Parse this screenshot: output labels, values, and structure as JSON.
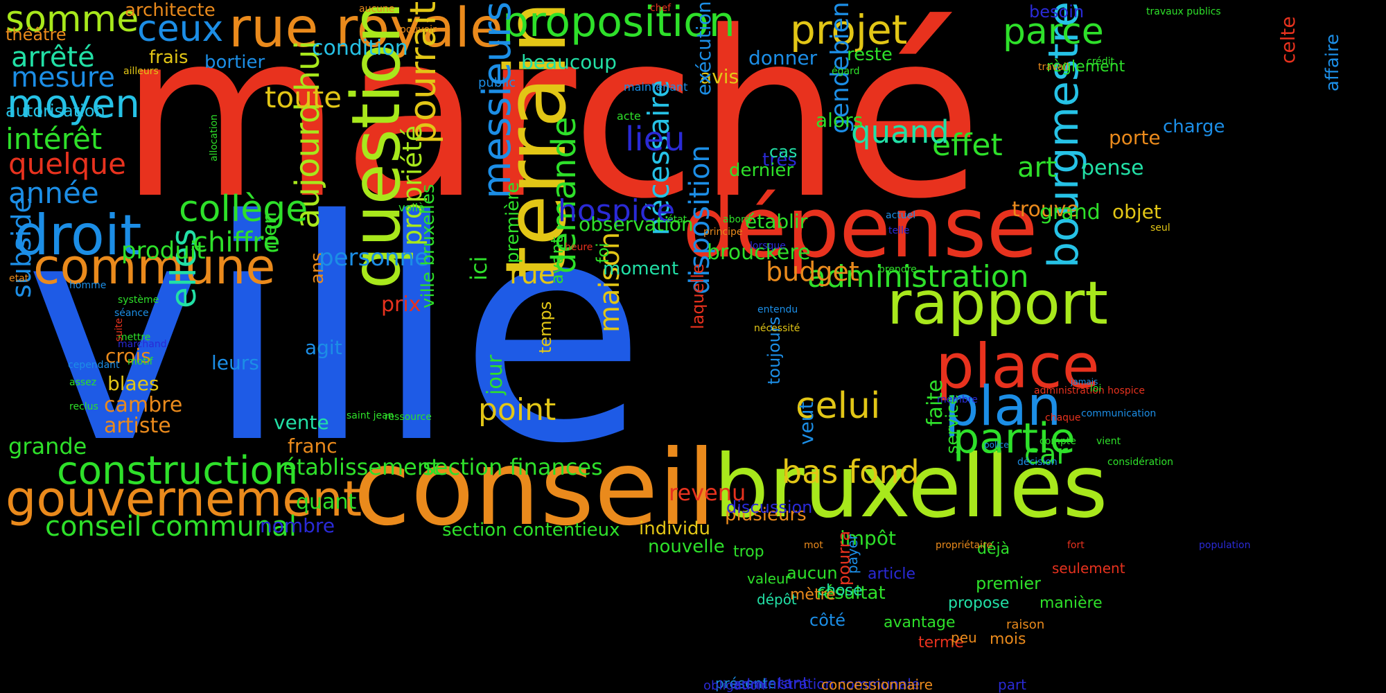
{
  "title": "",
  "background": "#000000",
  "palette": {
    "red": "#e8321e",
    "blue": "#1e5be6",
    "orange": "#ea8a1c",
    "lime": "#a8e81c",
    "yellow": "#e2c616",
    "green": "#2ee02a",
    "teal": "#22e0a6",
    "cyan": "#26c2e6",
    "indigo": "#2a2ad6",
    "azure": "#1c8ee6"
  },
  "words": [
    {
      "text": "marché",
      "color": "red"
    },
    {
      "text": "ville",
      "color": "blue"
    },
    {
      "text": "conseil",
      "color": "orange"
    },
    {
      "text": "bruxelles",
      "color": "lime"
    },
    {
      "text": "dépense",
      "color": "red"
    },
    {
      "text": "terrain",
      "color": "yellow"
    },
    {
      "text": "rue royale",
      "color": "orange"
    },
    {
      "text": "proposition",
      "color": "green"
    },
    {
      "text": "gouvernement",
      "color": "orange"
    },
    {
      "text": "question",
      "color": "lime"
    },
    {
      "text": "place",
      "color": "red"
    },
    {
      "text": "rapport",
      "color": "lime"
    },
    {
      "text": "droit",
      "color": "azure"
    },
    {
      "text": "commune",
      "color": "orange"
    },
    {
      "text": "construction",
      "color": "green"
    },
    {
      "text": "plan",
      "color": "azure"
    },
    {
      "text": "partie",
      "color": "green"
    },
    {
      "text": "bourgmestre",
      "color": "cyan"
    },
    {
      "text": "projet",
      "color": "yellow"
    },
    {
      "text": "parce",
      "color": "green"
    },
    {
      "text": "somme",
      "color": "lime"
    },
    {
      "text": "ceux",
      "color": "azure"
    },
    {
      "text": "moyen",
      "color": "cyan"
    },
    {
      "text": "messieurs",
      "color": "azure"
    },
    {
      "text": "pourrait",
      "color": "yellow"
    },
    {
      "text": "aujourd hui",
      "color": "lime"
    },
    {
      "text": "celui",
      "color": "yellow"
    },
    {
      "text": "collège",
      "color": "green"
    },
    {
      "text": "conseil communal",
      "color": "green"
    },
    {
      "text": "bas fond",
      "color": "yellow"
    },
    {
      "text": "administration",
      "color": "green"
    },
    {
      "text": "elles",
      "color": "teal"
    },
    {
      "text": "demande",
      "color": "green"
    },
    {
      "text": "toute",
      "color": "yellow"
    },
    {
      "text": "subside",
      "color": "azure"
    },
    {
      "text": "point",
      "color": "yellow"
    },
    {
      "text": "propriété",
      "color": "lime"
    },
    {
      "text": "nécessaire",
      "color": "cyan"
    },
    {
      "text": "effet",
      "color": "green"
    },
    {
      "text": "quand",
      "color": "teal"
    },
    {
      "text": "lieu",
      "color": "indigo"
    },
    {
      "text": "hospice",
      "color": "indigo"
    },
    {
      "text": "intérêt",
      "color": "green"
    },
    {
      "text": "quelque",
      "color": "red"
    },
    {
      "text": "année",
      "color": "azure"
    },
    {
      "text": "arrêté",
      "color": "teal"
    },
    {
      "text": "mesure",
      "color": "azure"
    },
    {
      "text": "chiffre",
      "color": "green"
    },
    {
      "text": "maison",
      "color": "yellow"
    },
    {
      "text": "établissement",
      "color": "green"
    },
    {
      "text": "section finances",
      "color": "green"
    },
    {
      "text": "disposition",
      "color": "azure"
    },
    {
      "text": "budget",
      "color": "orange"
    },
    {
      "text": "car",
      "color": "green"
    },
    {
      "text": "art",
      "color": "green"
    },
    {
      "text": "gendebien",
      "color": "azure"
    },
    {
      "text": "grande",
      "color": "green"
    },
    {
      "text": "condition",
      "color": "cyan"
    },
    {
      "text": "rue",
      "color": "yellow"
    },
    {
      "text": "section contentieux",
      "color": "green"
    },
    {
      "text": "individu",
      "color": "yellow"
    },
    {
      "text": "architecte",
      "color": "orange"
    },
    {
      "text": "théâtre",
      "color": "orange"
    },
    {
      "text": "autorisation",
      "color": "cyan"
    },
    {
      "text": "frais",
      "color": "yellow"
    },
    {
      "text": "bortier",
      "color": "azure"
    },
    {
      "text": "beaucoup",
      "color": "teal"
    },
    {
      "text": "donner",
      "color": "azure"
    },
    {
      "text": "reste",
      "color": "green"
    },
    {
      "text": "avis",
      "color": "yellow"
    },
    {
      "text": "besoin",
      "color": "indigo"
    },
    {
      "text": "règlement",
      "color": "green"
    },
    {
      "text": "celte",
      "color": "red"
    },
    {
      "text": "affaire",
      "color": "azure"
    },
    {
      "text": "charge",
      "color": "azure"
    },
    {
      "text": "porte",
      "color": "orange"
    },
    {
      "text": "pense",
      "color": "teal"
    },
    {
      "text": "trouve",
      "color": "orange"
    },
    {
      "text": "grand",
      "color": "green"
    },
    {
      "text": "objet",
      "color": "yellow"
    },
    {
      "text": "alors",
      "color": "green"
    },
    {
      "text": "très",
      "color": "indigo"
    },
    {
      "text": "établir",
      "color": "green"
    },
    {
      "text": "moment",
      "color": "teal"
    },
    {
      "text": "dernier",
      "color": "green"
    },
    {
      "text": "exécution",
      "color": "azure"
    },
    {
      "text": "cas",
      "color": "teal"
    },
    {
      "text": "ici",
      "color": "green"
    },
    {
      "text": "rien",
      "color": "green"
    },
    {
      "text": "ans",
      "color": "orange"
    },
    {
      "text": "personne",
      "color": "azure"
    },
    {
      "text": "produit",
      "color": "green"
    },
    {
      "text": "première",
      "color": "green"
    },
    {
      "text": "avant",
      "color": "green"
    },
    {
      "text": "foi",
      "color": "green"
    },
    {
      "text": "observation",
      "color": "green"
    },
    {
      "text": "ville bruxelles",
      "color": "green"
    },
    {
      "text": "brouckere",
      "color": "green"
    },
    {
      "text": "agit",
      "color": "azure"
    },
    {
      "text": "prix",
      "color": "red"
    },
    {
      "text": "crois",
      "color": "orange"
    },
    {
      "text": "leurs",
      "color": "azure"
    },
    {
      "text": "blaes",
      "color": "yellow"
    },
    {
      "text": "cambre",
      "color": "orange"
    },
    {
      "text": "artiste",
      "color": "orange"
    },
    {
      "text": "vente",
      "color": "teal"
    },
    {
      "text": "franc",
      "color": "orange"
    },
    {
      "text": "quant",
      "color": "green"
    },
    {
      "text": "nombre",
      "color": "indigo"
    },
    {
      "text": "jour",
      "color": "green"
    },
    {
      "text": "temps",
      "color": "yellow"
    },
    {
      "text": "revenu",
      "color": "red"
    },
    {
      "text": "toujours",
      "color": "azure"
    },
    {
      "text": "laquelle",
      "color": "red"
    },
    {
      "text": "faite",
      "color": "green"
    },
    {
      "text": "service",
      "color": "green"
    },
    {
      "text": "impôt",
      "color": "green"
    },
    {
      "text": "plusieurs",
      "color": "orange"
    },
    {
      "text": "nouvelle",
      "color": "green"
    },
    {
      "text": "veut",
      "color": "azure"
    },
    {
      "text": "discussion",
      "color": "indigo"
    },
    {
      "text": "trop",
      "color": "green"
    },
    {
      "text": "aucun",
      "color": "green"
    },
    {
      "text": "résultat",
      "color": "green"
    },
    {
      "text": "article",
      "color": "indigo"
    },
    {
      "text": "côté",
      "color": "azure"
    },
    {
      "text": "avantage",
      "color": "green"
    },
    {
      "text": "terme",
      "color": "red"
    },
    {
      "text": "peu",
      "color": "orange"
    },
    {
      "text": "mois",
      "color": "orange"
    },
    {
      "text": "raison",
      "color": "orange"
    },
    {
      "text": "part",
      "color": "indigo"
    },
    {
      "text": "chose",
      "color": "teal"
    },
    {
      "text": "dépôt",
      "color": "teal"
    },
    {
      "text": "valeur",
      "color": "green"
    },
    {
      "text": "propose",
      "color": "teal"
    },
    {
      "text": "déjà",
      "color": "green"
    },
    {
      "text": "premier",
      "color": "green"
    },
    {
      "text": "seulement",
      "color": "red"
    },
    {
      "text": "manière",
      "color": "green"
    },
    {
      "text": "payer",
      "color": "azure"
    },
    {
      "text": "mètre",
      "color": "orange"
    },
    {
      "text": "pourra",
      "color": "red"
    },
    {
      "text": "présente",
      "color": "azure"
    },
    {
      "text": "obligation",
      "color": "indigo"
    },
    {
      "text": "administration communale",
      "color": "indigo"
    },
    {
      "text": "tant",
      "color": "indigo"
    },
    {
      "text": "concessionnaire",
      "color": "orange"
    },
    {
      "text": "aucune",
      "color": "orange"
    },
    {
      "text": "pouvoir",
      "color": "orange"
    },
    {
      "text": "chef",
      "color": "red"
    },
    {
      "text": "travaux publics",
      "color": "green"
    },
    {
      "text": "ailleurs",
      "color": "yellow"
    },
    {
      "text": "maintenant",
      "color": "azure"
    },
    {
      "text": "public",
      "color": "azure"
    },
    {
      "text": "égard",
      "color": "green"
    },
    {
      "text": "travail",
      "color": "orange"
    },
    {
      "text": "crédit",
      "color": "green"
    },
    {
      "text": "acte",
      "color": "green"
    },
    {
      "text": "allocation",
      "color": "green"
    },
    {
      "text": "voilà",
      "color": "green"
    },
    {
      "text": "état",
      "color": "green"
    },
    {
      "text": "abord",
      "color": "green"
    },
    {
      "text": "actuel",
      "color": "azure"
    },
    {
      "text": "telle",
      "color": "indigo"
    },
    {
      "text": "seul",
      "color": "yellow"
    },
    {
      "text": "prendre",
      "color": "green"
    },
    {
      "text": "principe",
      "color": "orange"
    },
    {
      "text": "lorsque",
      "color": "indigo"
    },
    {
      "text": "entendu",
      "color": "azure"
    },
    {
      "text": "nécessité",
      "color": "yellow"
    },
    {
      "text": "heure",
      "color": "red"
    },
    {
      "text": "etat",
      "color": "orange"
    },
    {
      "text": "homme",
      "color": "azure"
    },
    {
      "text": "système",
      "color": "green"
    },
    {
      "text": "séance",
      "color": "azure"
    },
    {
      "text": "mettre",
      "color": "green"
    },
    {
      "text": "marchand",
      "color": "indigo"
    },
    {
      "text": "motif",
      "color": "green"
    },
    {
      "text": "suite",
      "color": "red"
    },
    {
      "text": "cependant",
      "color": "azure"
    },
    {
      "text": "assez",
      "color": "green"
    },
    {
      "text": "reclus",
      "color": "green"
    },
    {
      "text": "saint jean",
      "color": "green"
    },
    {
      "text": "ressource",
      "color": "green"
    },
    {
      "text": "membre",
      "color": "indigo"
    },
    {
      "text": "administration hospice",
      "color": "red"
    },
    {
      "text": "loi",
      "color": "green"
    },
    {
      "text": "jamais",
      "color": "azure"
    },
    {
      "text": "communication",
      "color": "azure"
    },
    {
      "text": "chaque",
      "color": "red"
    },
    {
      "text": "compte",
      "color": "green"
    },
    {
      "text": "vient",
      "color": "green"
    },
    {
      "text": "considération",
      "color": "green"
    },
    {
      "text": "décision",
      "color": "azure"
    },
    {
      "text": "police",
      "color": "azure"
    },
    {
      "text": "mot",
      "color": "orange"
    },
    {
      "text": "propriétaire",
      "color": "orange"
    },
    {
      "text": "fort",
      "color": "red"
    },
    {
      "text": "population",
      "color": "indigo"
    }
  ]
}
